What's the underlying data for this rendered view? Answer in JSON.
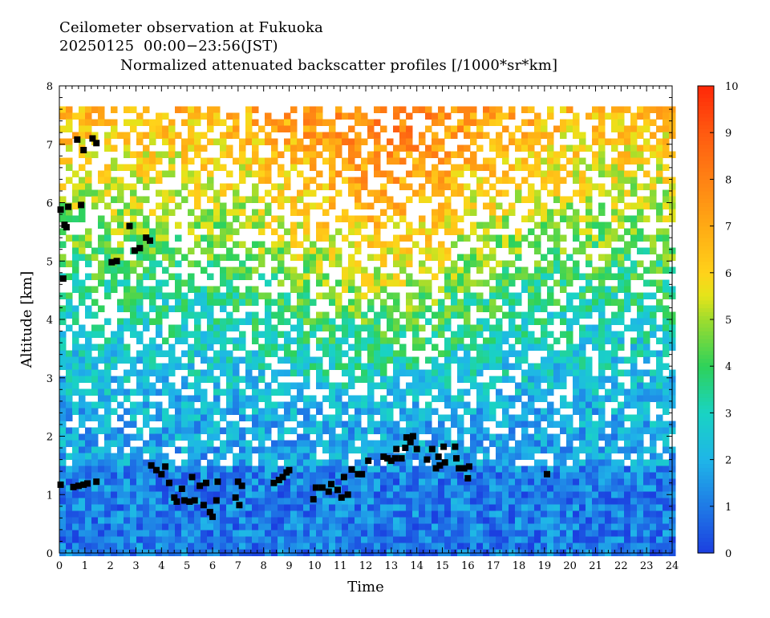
{
  "header": {
    "title_line1": "Ceilometer observation at Fukuoka",
    "title_line2": "20250125  00:00−23:56(JST)",
    "title_line3": "Normalized attenuated backscatter profiles [/1000*sr*km]"
  },
  "chart_data": {
    "type": "heatmap",
    "xlabel": "Time",
    "ylabel": "Altitude [km]",
    "xlim": [
      0,
      24
    ],
    "ylim": [
      0,
      8
    ],
    "x_ticks": [
      0,
      1,
      2,
      3,
      4,
      5,
      6,
      7,
      8,
      9,
      10,
      11,
      12,
      13,
      14,
      15,
      16,
      17,
      18,
      19,
      20,
      21,
      22,
      23,
      24
    ],
    "y_ticks": [
      0,
      1,
      2,
      3,
      4,
      5,
      6,
      7,
      8
    ],
    "data_top_km": 7.65,
    "colorbar": {
      "min": 0,
      "max": 10,
      "ticks": [
        0,
        1,
        2,
        3,
        4,
        5,
        6,
        7,
        8,
        9,
        10
      ],
      "stops": [
        {
          "v": 0,
          "c": "#1b3fe0"
        },
        {
          "v": 1,
          "c": "#1f7ae6"
        },
        {
          "v": 2,
          "c": "#1fb5e8"
        },
        {
          "v": 3,
          "c": "#19d3c3"
        },
        {
          "v": 4,
          "c": "#2ed25a"
        },
        {
          "v": 5,
          "c": "#9edc2e"
        },
        {
          "v": 5.5,
          "c": "#e4e41a"
        },
        {
          "v": 6,
          "c": "#ffd21a"
        },
        {
          "v": 7,
          "c": "#ffaa14"
        },
        {
          "v": 8,
          "c": "#ff8214"
        },
        {
          "v": 9,
          "c": "#ff5a10"
        },
        {
          "v": 10,
          "c": "#ff2808"
        }
      ]
    },
    "background_profile": [
      {
        "z": 0.0,
        "v": 1.0
      },
      {
        "z": 1.45,
        "v": 1.1
      },
      {
        "z": 1.6,
        "v": 1.7
      },
      {
        "z": 2.5,
        "v": 2.0
      },
      {
        "z": 3.5,
        "v": 2.6
      },
      {
        "z": 4.5,
        "v": 3.4
      },
      {
        "z": 5.5,
        "v": 4.6
      },
      {
        "z": 6.5,
        "v": 5.6
      },
      {
        "z": 7.65,
        "v": 6.6
      }
    ],
    "cloud_base": [
      {
        "x": 0.05,
        "y": 1.17
      },
      {
        "x": 0.55,
        "y": 1.13
      },
      {
        "x": 0.75,
        "y": 1.15
      },
      {
        "x": 0.95,
        "y": 1.17
      },
      {
        "x": 1.1,
        "y": 1.19
      },
      {
        "x": 1.45,
        "y": 1.22
      },
      {
        "x": 0.15,
        "y": 4.7
      },
      {
        "x": 0.2,
        "y": 5.62
      },
      {
        "x": 0.28,
        "y": 5.58
      },
      {
        "x": 0.35,
        "y": 5.93
      },
      {
        "x": 0.05,
        "y": 5.88
      },
      {
        "x": 0.85,
        "y": 5.96
      },
      {
        "x": 0.7,
        "y": 7.08
      },
      {
        "x": 0.95,
        "y": 6.9
      },
      {
        "x": 1.3,
        "y": 7.1
      },
      {
        "x": 1.45,
        "y": 7.02
      },
      {
        "x": 2.05,
        "y": 4.98
      },
      {
        "x": 2.25,
        "y": 5.0
      },
      {
        "x": 2.75,
        "y": 5.6
      },
      {
        "x": 2.95,
        "y": 5.18
      },
      {
        "x": 3.15,
        "y": 5.22
      },
      {
        "x": 3.4,
        "y": 5.4
      },
      {
        "x": 3.55,
        "y": 5.35
      },
      {
        "x": 3.6,
        "y": 1.5
      },
      {
        "x": 3.8,
        "y": 1.42
      },
      {
        "x": 4.0,
        "y": 1.35
      },
      {
        "x": 4.15,
        "y": 1.48
      },
      {
        "x": 4.3,
        "y": 1.2
      },
      {
        "x": 4.5,
        "y": 0.95
      },
      {
        "x": 4.6,
        "y": 0.88
      },
      {
        "x": 4.8,
        "y": 1.1
      },
      {
        "x": 4.9,
        "y": 0.9
      },
      {
        "x": 5.1,
        "y": 0.88
      },
      {
        "x": 5.2,
        "y": 1.3
      },
      {
        "x": 5.3,
        "y": 0.9
      },
      {
        "x": 5.5,
        "y": 1.15
      },
      {
        "x": 5.65,
        "y": 0.82
      },
      {
        "x": 5.75,
        "y": 1.2
      },
      {
        "x": 5.9,
        "y": 0.7
      },
      {
        "x": 6.0,
        "y": 0.62
      },
      {
        "x": 6.2,
        "y": 1.22
      },
      {
        "x": 6.15,
        "y": 0.9
      },
      {
        "x": 6.9,
        "y": 0.95
      },
      {
        "x": 7.0,
        "y": 1.22
      },
      {
        "x": 7.05,
        "y": 0.82
      },
      {
        "x": 7.15,
        "y": 1.15
      },
      {
        "x": 8.4,
        "y": 1.2
      },
      {
        "x": 8.6,
        "y": 1.25
      },
      {
        "x": 8.75,
        "y": 1.3
      },
      {
        "x": 8.9,
        "y": 1.38
      },
      {
        "x": 9.0,
        "y": 1.42
      },
      {
        "x": 9.95,
        "y": 0.92
      },
      {
        "x": 10.05,
        "y": 1.12
      },
      {
        "x": 10.3,
        "y": 1.12
      },
      {
        "x": 10.55,
        "y": 1.05
      },
      {
        "x": 10.65,
        "y": 1.18
      },
      {
        "x": 10.9,
        "y": 1.08
      },
      {
        "x": 11.05,
        "y": 0.95
      },
      {
        "x": 11.15,
        "y": 1.3
      },
      {
        "x": 11.3,
        "y": 1.0
      },
      {
        "x": 11.45,
        "y": 1.43
      },
      {
        "x": 11.7,
        "y": 1.35
      },
      {
        "x": 11.85,
        "y": 1.35
      },
      {
        "x": 12.1,
        "y": 1.58
      },
      {
        "x": 12.7,
        "y": 1.65
      },
      {
        "x": 12.85,
        "y": 1.62
      },
      {
        "x": 13.0,
        "y": 1.58
      },
      {
        "x": 13.15,
        "y": 1.62
      },
      {
        "x": 13.4,
        "y": 1.62
      },
      {
        "x": 13.55,
        "y": 1.8
      },
      {
        "x": 13.6,
        "y": 1.98
      },
      {
        "x": 13.75,
        "y": 1.9
      },
      {
        "x": 13.85,
        "y": 2.0
      },
      {
        "x": 14.0,
        "y": 1.78
      },
      {
        "x": 13.2,
        "y": 1.78
      },
      {
        "x": 14.4,
        "y": 1.6
      },
      {
        "x": 14.6,
        "y": 1.78
      },
      {
        "x": 14.75,
        "y": 1.45
      },
      {
        "x": 14.85,
        "y": 1.65
      },
      {
        "x": 14.9,
        "y": 1.5
      },
      {
        "x": 15.1,
        "y": 1.55
      },
      {
        "x": 15.05,
        "y": 1.82
      },
      {
        "x": 15.5,
        "y": 1.82
      },
      {
        "x": 15.55,
        "y": 1.62
      },
      {
        "x": 15.65,
        "y": 1.45
      },
      {
        "x": 15.85,
        "y": 1.45
      },
      {
        "x": 16.0,
        "y": 1.28
      },
      {
        "x": 16.05,
        "y": 1.48
      },
      {
        "x": 19.1,
        "y": 1.35
      }
    ]
  }
}
